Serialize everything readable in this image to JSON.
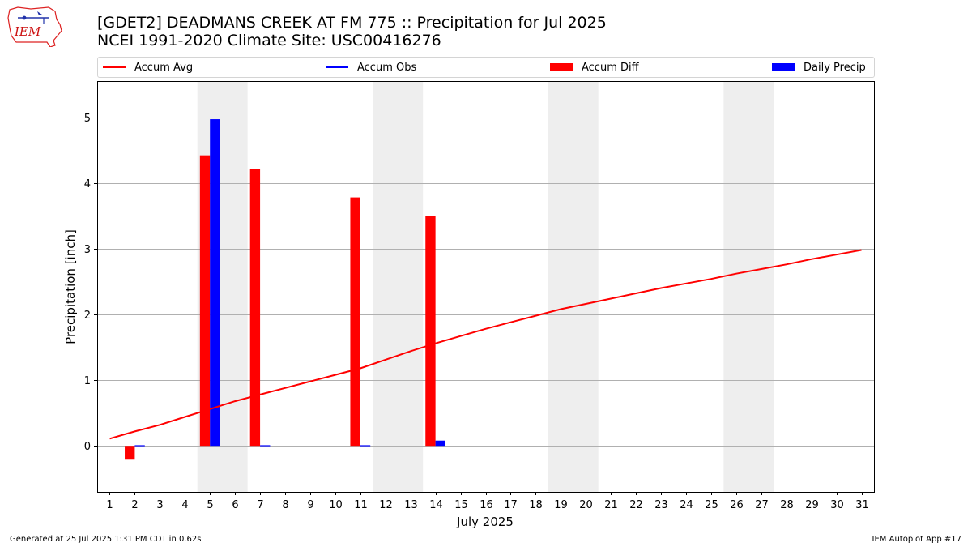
{
  "header": {
    "title_line1": "[GDET2] DEADMANS CREEK AT FM 775 :: Precipitation for Jul 2025",
    "title_line2": "NCEI 1991-2020 Climate Site: USC00416276",
    "logo_text": "IEM"
  },
  "legend": {
    "accum_avg": "Accum Avg",
    "accum_obs": "Accum Obs",
    "accum_diff": "Accum Diff",
    "daily_precip": "Daily Precip"
  },
  "colors": {
    "avg": "#ff0000",
    "obs": "#0000ff",
    "diff": "#ff0000",
    "daily": "#0000ff",
    "weekend": "#eeeeee",
    "grid": "#b0b0b0"
  },
  "footer": {
    "generated": "Generated at 25 Jul 2025 1:31 PM CDT in 0.62s",
    "app": "IEM Autoplot App #17"
  },
  "chart_data": {
    "type": "bar",
    "xlabel": "July 2025",
    "ylabel": "Precipitation [inch]",
    "x": [
      1,
      2,
      3,
      4,
      5,
      6,
      7,
      8,
      9,
      10,
      11,
      12,
      13,
      14,
      15,
      16,
      17,
      18,
      19,
      20,
      21,
      22,
      23,
      24,
      25,
      26,
      27,
      28,
      29,
      30,
      31
    ],
    "ylim": [
      -0.7,
      5.55
    ],
    "yticks": [
      0,
      1,
      2,
      3,
      4,
      5
    ],
    "grid": true,
    "weekend_days": [
      5,
      6,
      12,
      13,
      19,
      20,
      26,
      27
    ],
    "series": [
      {
        "name": "Accum Avg",
        "kind": "line",
        "values": [
          0.11,
          0.22,
          0.32,
          0.44,
          0.56,
          0.68,
          0.78,
          0.88,
          0.98,
          1.08,
          1.18,
          1.31,
          1.44,
          1.56,
          1.67,
          1.78,
          1.88,
          1.98,
          2.08,
          2.16,
          2.24,
          2.32,
          2.4,
          2.47,
          2.54,
          2.62,
          2.69,
          2.76,
          2.84,
          2.91,
          2.98
        ]
      },
      {
        "name": "Accum Diff",
        "kind": "bar",
        "points": [
          {
            "day": 2,
            "value": -0.21
          },
          {
            "day": 5,
            "value": 4.42
          },
          {
            "day": 7,
            "value": 4.21
          },
          {
            "day": 11,
            "value": 3.78
          },
          {
            "day": 14,
            "value": 3.5
          }
        ]
      },
      {
        "name": "Daily Precip",
        "kind": "bar",
        "points": [
          {
            "day": 2,
            "value": 0.01
          },
          {
            "day": 5,
            "value": 4.97
          },
          {
            "day": 7,
            "value": 0.01
          },
          {
            "day": 11,
            "value": 0.01
          },
          {
            "day": 14,
            "value": 0.08
          }
        ]
      }
    ]
  }
}
